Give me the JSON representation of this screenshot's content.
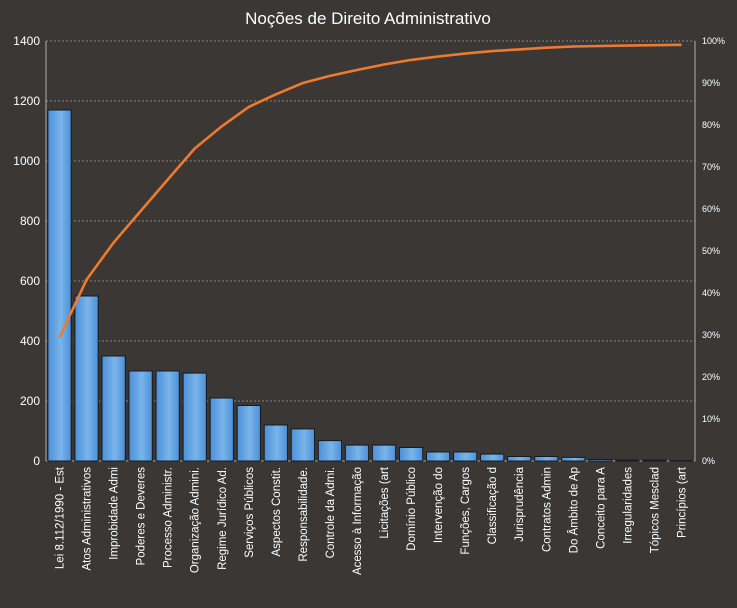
{
  "chart_data": {
    "type": "bar",
    "title": "Noções de Direito Administrativo",
    "categories": [
      "Lei 8.112/1990 - Est",
      "Atos Administrativos",
      "Improbidade Admi",
      "Poderes e Deveres",
      "Processo Administr.",
      "Organização Admini.",
      "Regime Jurídico Ad.",
      "Serviços Públicos",
      "Aspectos Constit.",
      "Responsabilidade.",
      "Controle da Admi.",
      "Acesso à Informação",
      "Licitações (art",
      "Domínio Público",
      "Intervenção do",
      "Funções, Cargos",
      "Classificação d",
      "Jurisprudência",
      "Contratos Admin",
      "Do Âmbito de Ap",
      "Conceito para A",
      "Irregularidades",
      "Tópicos Mesclad",
      "Princípios (art"
    ],
    "values": [
      1170,
      550,
      350,
      300,
      300,
      293,
      210,
      185,
      120,
      107,
      68,
      53,
      53,
      45,
      30,
      30,
      23,
      15,
      15,
      12,
      5,
      3,
      3,
      1
    ],
    "cumulative_percent": [
      29.4,
      43.2,
      52.0,
      59.5,
      67.0,
      74.4,
      79.7,
      84.3,
      87.3,
      90.0,
      91.7,
      93.1,
      94.4,
      95.5,
      96.3,
      97.0,
      97.6,
      98.0,
      98.4,
      98.7,
      98.8,
      98.9,
      99.0,
      99.1
    ],
    "ylim": [
      0,
      1400
    ],
    "yticks": [
      "0",
      "200",
      "400",
      "600",
      "800",
      "1000",
      "1200",
      "1400"
    ],
    "y2lim": [
      0,
      100
    ],
    "y2ticks": [
      "0%",
      "10%",
      "20%",
      "30%",
      "40%",
      "50%",
      "60%",
      "70%",
      "80%",
      "90%",
      "100%"
    ],
    "grid": true,
    "colors": {
      "background": "#3a3735",
      "bar_fill": "#4a90d9",
      "bar_fill_light": "#7ab4ea",
      "bar_stroke": "#1a1a1a",
      "line": "#ee7a2e",
      "grid": "#cfcfcf",
      "text": "#ffffff"
    }
  }
}
